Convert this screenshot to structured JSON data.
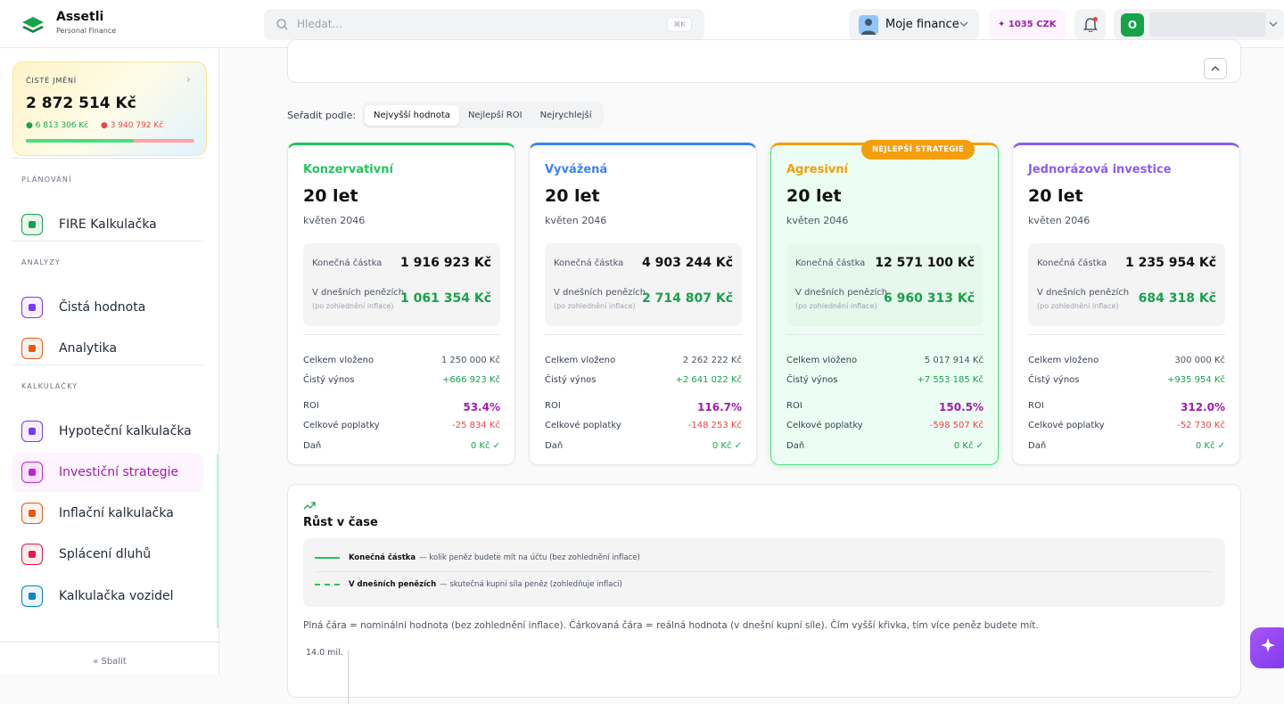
{
  "header": {
    "logo_title": "Assetli",
    "logo_subtitle": "Personal Finance",
    "search_placeholder": "Hledat...",
    "search_shortcut": "⌘K",
    "profile": "Moje finance",
    "credits": "1035 CZK",
    "avatar": "O"
  },
  "sidebar": {
    "net_worth_label": "ČISTÉ JMĚNÍ",
    "net_worth": "2 872 514 Kč",
    "assets": "6 813 306 Kč",
    "liabilities": "3 940 792 Kč",
    "sections": [
      {
        "title": "PLÁNOVÁNÍ",
        "items": [
          {
            "label": "FIRE Kalkulačka",
            "color": "#16a34a"
          }
        ]
      },
      {
        "title": "ANALÝZY",
        "items": [
          {
            "label": "Čistá hodnota",
            "color": "#7c3aed"
          },
          {
            "label": "Analytika",
            "color": "#ea580c"
          }
        ]
      },
      {
        "title": "KALKULAČKY",
        "items": [
          {
            "label": "Hypoteční kalkulačka",
            "color": "#7c3aed"
          },
          {
            "label": "Investiční strategie",
            "color": "#c026d3",
            "active": true
          },
          {
            "label": "Inflační kalkulačka",
            "color": "#ea580c"
          },
          {
            "label": "Splácení dluhů",
            "color": "#e11d48"
          },
          {
            "label": "Kalkulačka vozidel",
            "color": "#0284c7"
          }
        ]
      }
    ],
    "collapse": "Sbalit"
  },
  "main": {
    "sort_label": "Seřadit podle:",
    "sort_options": [
      "Nejvyšší hodnota",
      "Nejlepší ROI",
      "Nejrychlejší"
    ],
    "best_badge": "NEJLEPŠÍ STRATEGIE",
    "strategies": [
      {
        "name": "Konzervativní",
        "color": "#22c55e",
        "years": "20 let",
        "date": "květen 2046",
        "final_label": "Konečná částka",
        "final": "1 916 923 Kč",
        "today_label": "V dnešních penězích",
        "today_note": "(po zohlednění inflace)",
        "today": "1 061 354 Kč",
        "rows": [
          {
            "label": "Celkem vloženo",
            "value": "1 250 000 Kč"
          },
          {
            "label": "Čistý výnos",
            "value": "+666 923 Kč"
          },
          {
            "label": "ROI",
            "value": "53.4%"
          },
          {
            "label": "Celkové poplatky",
            "value": "-25 834 Kč"
          },
          {
            "label": "Daň",
            "value": "0 Kč ✓"
          }
        ]
      },
      {
        "name": "Vyvážená",
        "color": "#3b82f6",
        "years": "20 let",
        "date": "květen 2046",
        "final_label": "Konečná částka",
        "final": "4 903 244 Kč",
        "today_label": "V dnešních penězích",
        "today_note": "(po zohlednění inflace)",
        "today": "2 714 807 Kč",
        "rows": [
          {
            "label": "Celkem vloženo",
            "value": "2 262 222 Kč"
          },
          {
            "label": "Čistý výnos",
            "value": "+2 641 022 Kč"
          },
          {
            "label": "ROI",
            "value": "116.7%"
          },
          {
            "label": "Celkové poplatky",
            "value": "-148 253 Kč"
          },
          {
            "label": "Daň",
            "value": "0 Kč ✓"
          }
        ]
      },
      {
        "name": "Agresivní",
        "color": "#f59e0b",
        "best": true,
        "years": "20 let",
        "date": "květen 2046",
        "final_label": "Konečná částka",
        "final": "12 571 100 Kč",
        "today_label": "V dnešních penězích",
        "today_note": "(po zohlednění inflace)",
        "today": "6 960 313 Kč",
        "rows": [
          {
            "label": "Celkem vloženo",
            "value": "5 017 914 Kč"
          },
          {
            "label": "Čistý výnos",
            "value": "+7 553 185 Kč"
          },
          {
            "label": "ROI",
            "value": "150.5%"
          },
          {
            "label": "Celkové poplatky",
            "value": "-598 507 Kč"
          },
          {
            "label": "Daň",
            "value": "0 Kč ✓"
          }
        ]
      },
      {
        "name": "Jednorázová investice",
        "color": "#8b5cf6",
        "years": "20 let",
        "date": "květen 2046",
        "final_label": "Konečná částka",
        "final": "1 235 954 Kč",
        "today_label": "V dnešních penězích",
        "today_note": "(po zohlednění inflace)",
        "today": "684 318 Kč",
        "rows": [
          {
            "label": "Celkem vloženo",
            "value": "300 000 Kč"
          },
          {
            "label": "Čistý výnos",
            "value": "+935 954 Kč"
          },
          {
            "label": "ROI",
            "value": "312.0%"
          },
          {
            "label": "Celkové poplatky",
            "value": "-52 730 Kč"
          },
          {
            "label": "Daň",
            "value": "0 Kč ✓"
          }
        ]
      }
    ],
    "growth": {
      "title": "Růst v čase",
      "legend": [
        {
          "name": "Konečná částka",
          "desc": "— kolik peněz budete mít na účtu (bez zohlednění inflace)"
        },
        {
          "name": "V dnešních penězích",
          "desc": "— skutečná kupní síla peněz (zohledňuje inflaci)"
        }
      ],
      "note": "Plná čára = nominální hodnota (bez zohlednění inflace). Čárkovaná čára = reálná hodnota (v dnešní kupní síle). Čím vyšší křivka, tím více peněz budete mít.",
      "axis_label": "14.0 mil."
    }
  }
}
